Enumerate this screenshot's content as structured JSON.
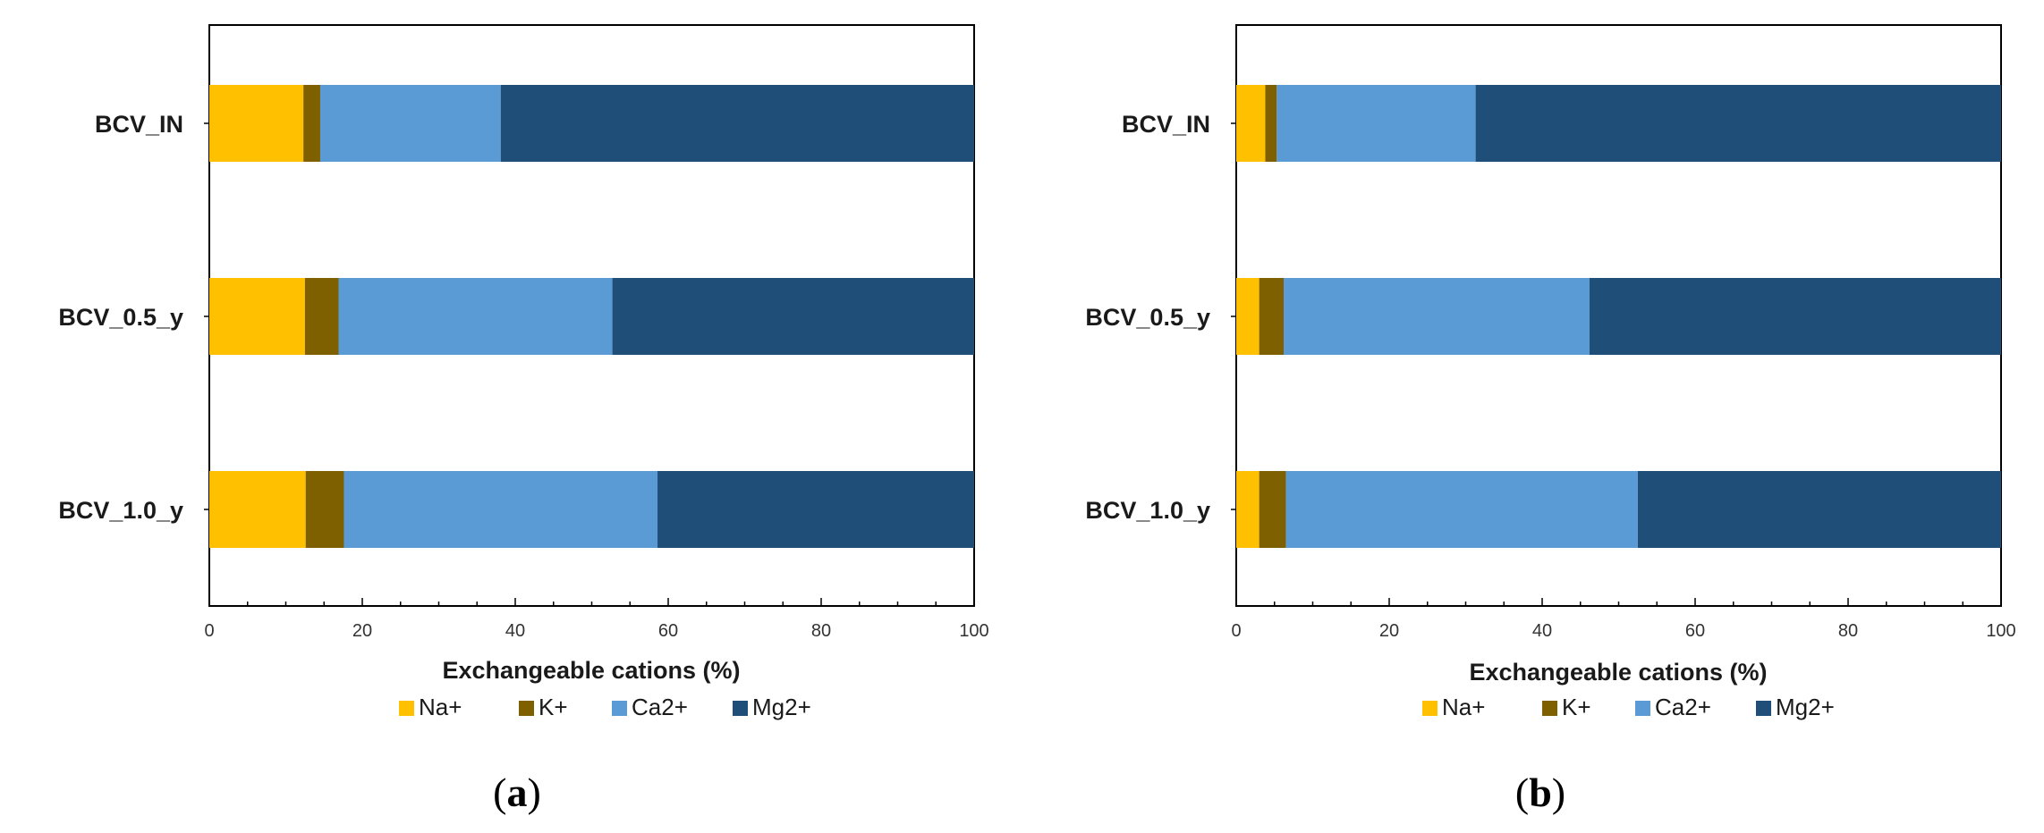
{
  "colors": {
    "Na+": "#FFC000",
    "K+": "#7F6000",
    "Ca2+": "#5B9BD5",
    "Mg2+": "#1F4E79",
    "axis": "#000000"
  },
  "chart_data": [
    {
      "type": "bar",
      "orientation": "horizontal",
      "stacked": true,
      "panel_label": "a",
      "categories": [
        "BCV_IN",
        "BCV_0.5_y",
        "BCV_1.0_y"
      ],
      "series": [
        {
          "name": "Na+",
          "values": [
            12.3,
            12.5,
            12.6
          ]
        },
        {
          "name": "K+",
          "values": [
            2.2,
            4.4,
            5.0
          ]
        },
        {
          "name": "Ca2+",
          "values": [
            23.6,
            35.8,
            41.0
          ]
        },
        {
          "name": "Mg2+",
          "values": [
            61.9,
            47.3,
            41.4
          ]
        }
      ],
      "xlabel": "Exchangeable cations (%)",
      "ylabel": "",
      "xlim": [
        0,
        100
      ],
      "xticks": [
        0,
        20,
        40,
        60,
        80,
        100
      ],
      "legend": "bottom"
    },
    {
      "type": "bar",
      "orientation": "horizontal",
      "stacked": true,
      "panel_label": "b",
      "categories": [
        "BCV_IN",
        "BCV_0.5_y",
        "BCV_1.0_y"
      ],
      "series": [
        {
          "name": "Na+",
          "values": [
            3.8,
            3.0,
            3.0
          ]
        },
        {
          "name": "K+",
          "values": [
            1.5,
            3.2,
            3.5
          ]
        },
        {
          "name": "Ca2+",
          "values": [
            26.0,
            40.0,
            46.0
          ]
        },
        {
          "name": "Mg2+",
          "values": [
            68.7,
            53.8,
            47.5
          ]
        }
      ],
      "xlabel": "Exchangeable cations (%)",
      "ylabel": "",
      "xlim": [
        0,
        100
      ],
      "xticks": [
        0,
        20,
        40,
        60,
        80,
        100
      ],
      "legend": "bottom"
    }
  ]
}
